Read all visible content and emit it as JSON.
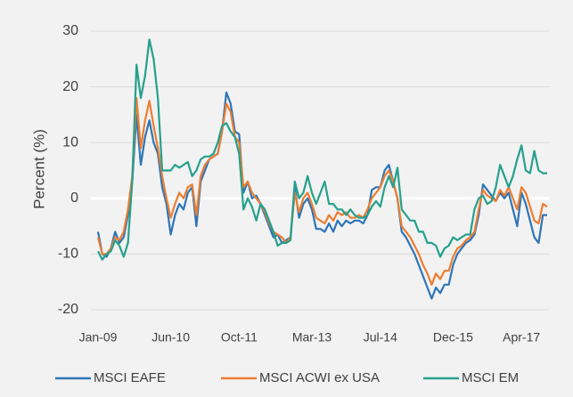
{
  "chart_data": {
    "type": "line",
    "y_label": "Percent (%)",
    "categories": [
      "Jan-09",
      null,
      null,
      null,
      null,
      null,
      null,
      null,
      null,
      null,
      null,
      null,
      null,
      null,
      null,
      null,
      null,
      "Jun-10",
      null,
      null,
      null,
      null,
      null,
      null,
      null,
      null,
      null,
      null,
      null,
      null,
      null,
      null,
      null,
      "Oct-11",
      null,
      null,
      null,
      null,
      null,
      null,
      null,
      null,
      null,
      null,
      null,
      null,
      null,
      null,
      null,
      null,
      "Mar-13",
      null,
      null,
      null,
      null,
      null,
      null,
      null,
      null,
      null,
      null,
      null,
      null,
      null,
      null,
      null,
      "Jul-14",
      null,
      null,
      null,
      null,
      null,
      null,
      null,
      null,
      null,
      null,
      null,
      null,
      null,
      null,
      null,
      null,
      "Dec-15",
      null,
      null,
      null,
      null,
      null,
      null,
      null,
      null,
      null,
      null,
      null,
      null,
      null,
      null,
      null,
      "Apr-17",
      null,
      null,
      null,
      null,
      null,
      null
    ],
    "series": [
      {
        "name": "MSCI EAFE",
        "color": "#2e75b6",
        "values": [
          -6,
          -10,
          -10.5,
          -9,
          -6,
          -8,
          -7,
          -3,
          3,
          15,
          6,
          11,
          14,
          10,
          8,
          2,
          -1,
          -6.5,
          -3,
          -1,
          -2,
          1,
          2,
          -5,
          3,
          5,
          7,
          7.5,
          8,
          12,
          19,
          17,
          12,
          11.5,
          1,
          3,
          0,
          0.5,
          -1,
          -3,
          -5,
          -7,
          -6.5,
          -8,
          -7.5,
          -7,
          2,
          -3.5,
          -1,
          0,
          -2,
          -5.5,
          -5.5,
          -6,
          -4.5,
          -6,
          -4,
          -5,
          -4,
          -4.5,
          -4,
          -4,
          -4.5,
          -3,
          1.5,
          2,
          2,
          5,
          6,
          3,
          0,
          -6,
          -7,
          -8.5,
          -10,
          -12,
          -14,
          -16,
          -18,
          -16,
          -17,
          -15.5,
          -15.5,
          -12,
          -10,
          -9,
          -8,
          -7.5,
          -6.5,
          -3,
          2.5,
          1.5,
          0.5,
          -0.5,
          1,
          0,
          1,
          -2,
          -5,
          1,
          -1,
          -4,
          -7,
          -8,
          -3,
          -3
        ]
      },
      {
        "name": "MSCI ACWI ex USA",
        "color": "#ed7d31",
        "values": [
          -7,
          -10,
          -10,
          -9,
          -7,
          -7.5,
          -6,
          -2,
          4,
          18,
          9,
          14,
          17.5,
          13,
          9,
          4,
          0,
          -3.5,
          -1,
          1,
          0,
          2,
          2.5,
          -3,
          4,
          6,
          7,
          7.5,
          8,
          12,
          17,
          15.5,
          11,
          10,
          2,
          3,
          1,
          0,
          -1,
          -2.5,
          -4.5,
          -6,
          -6.5,
          -7,
          -8,
          -7,
          1,
          -2.5,
          0,
          1,
          -1,
          -3.5,
          -4,
          -4.5,
          -3,
          -4,
          -2.5,
          -3,
          -2.5,
          -3.5,
          -3.5,
          -3,
          -3.5,
          -2,
          0,
          1,
          2,
          4,
          5,
          3,
          0,
          -5,
          -6,
          -7,
          -8.5,
          -10,
          -12,
          -13.5,
          -15.5,
          -13.5,
          -14.5,
          -13,
          -13,
          -10.5,
          -9,
          -8.5,
          -7.5,
          -7,
          -6,
          -2,
          1.5,
          0.5,
          0,
          -0.5,
          1.5,
          0.5,
          2,
          0,
          -2,
          2,
          1,
          -1.5,
          -4,
          -4.5,
          -1,
          -1.5
        ]
      },
      {
        "name": "MSCI EM",
        "color": "#26a08c",
        "values": [
          -9.5,
          -11,
          -10,
          -9.5,
          -7.5,
          -8.5,
          -10.5,
          -8,
          3,
          24,
          18,
          22,
          28.5,
          25,
          18,
          5,
          5,
          5,
          6,
          5.5,
          6,
          6.5,
          4,
          5,
          7,
          7.5,
          7.5,
          8,
          10,
          13,
          13.5,
          12,
          11,
          8,
          -2,
          0,
          -1.5,
          -4,
          -1,
          -2,
          -4,
          -6,
          -8.5,
          -8,
          -8,
          -7.5,
          3,
          0,
          1,
          4,
          1,
          -1,
          1,
          3,
          -1,
          -1,
          -2,
          -2,
          -3,
          -2,
          -3,
          -3.5,
          -3.5,
          -3,
          -1.5,
          -0.5,
          -1.5,
          2,
          4,
          2,
          5.5,
          -2,
          -3,
          -4,
          -4,
          -6,
          -6,
          -8,
          -8,
          -8.5,
          -10.5,
          -9,
          -8.5,
          -7,
          -7.5,
          -7,
          -6.5,
          -6.5,
          -2,
          0,
          0.5,
          -1,
          -0.5,
          2,
          6,
          4,
          2,
          4,
          7,
          9.5,
          5,
          4.5,
          8.5,
          5,
          4.5,
          4.5
        ]
      }
    ],
    "ylim": [
      -20,
      30
    ],
    "yticks": [
      -20,
      -10,
      0,
      10,
      20,
      30
    ],
    "grid": true,
    "legend": "bottom"
  }
}
